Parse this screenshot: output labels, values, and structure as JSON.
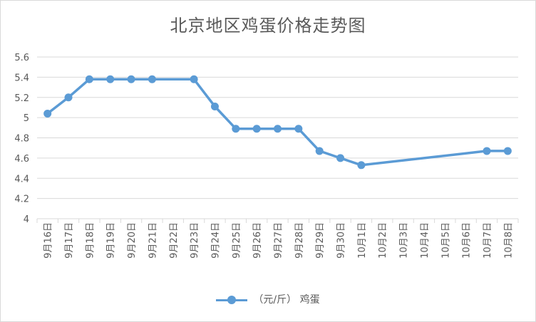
{
  "chart_data": {
    "type": "line",
    "title": "北京地区鸡蛋价格走势图",
    "categories": [
      "9月16日",
      "9月17日",
      "9月18日",
      "9月19日",
      "9月20日",
      "9月21日",
      "9月22日",
      "9月23日",
      "9月24日",
      "9月25日",
      "9月26日",
      "9月27日",
      "9月28日",
      "9月29日",
      "9月30日",
      "10月1日",
      "10月2日",
      "10月3日",
      "10月4日",
      "10月5日",
      "10月6日",
      "10月7日",
      "10月8日"
    ],
    "series": [
      {
        "name": "（元/斤） 鸡蛋",
        "color": "#5b9bd5",
        "values": [
          5.04,
          5.2,
          5.38,
          5.38,
          5.38,
          5.38,
          null,
          5.38,
          5.11,
          4.89,
          4.89,
          4.89,
          4.89,
          4.67,
          4.6,
          4.53,
          null,
          null,
          null,
          null,
          null,
          4.67,
          4.67
        ]
      }
    ],
    "yticks": [
      "4",
      "4.2",
      "4.4",
      "4.6",
      "4.8",
      "5",
      "5.2",
      "5.4",
      "5.6"
    ],
    "ylim": [
      4,
      5.6
    ],
    "grid": true,
    "legend": "bottom"
  }
}
